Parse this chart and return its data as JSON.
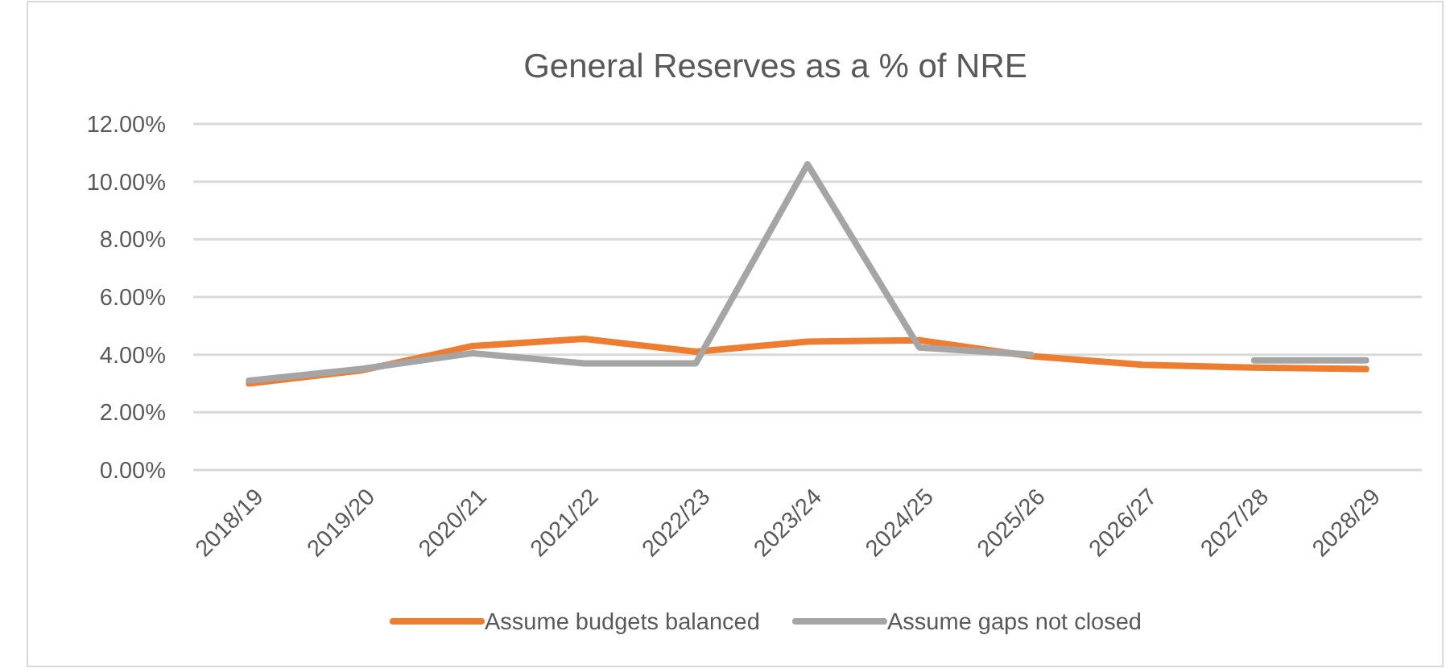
{
  "chart_data": {
    "type": "line",
    "title": "General Reserves as a % of NRE",
    "categories": [
      "2018/19",
      "2019/20",
      "2020/21",
      "2021/22",
      "2022/23",
      "2023/24",
      "2024/25",
      "2025/26",
      "2026/27",
      "2027/28",
      "2028/29"
    ],
    "series": [
      {
        "name": "Assume budgets balanced",
        "color": "#ed7d31",
        "values": [
          3.0,
          3.45,
          4.3,
          4.55,
          4.1,
          4.45,
          4.5,
          3.95,
          3.65,
          3.55,
          3.5
        ]
      },
      {
        "name": "Assume gaps not closed",
        "color": "#a5a5a5",
        "values": [
          3.1,
          3.5,
          4.05,
          3.7,
          3.7,
          10.6,
          4.25,
          4.0,
          null,
          3.8,
          3.8
        ]
      }
    ],
    "ylim": [
      0,
      12
    ],
    "yticks": [
      {
        "value": 0,
        "label": "0.00%"
      },
      {
        "value": 2,
        "label": "2.00%"
      },
      {
        "value": 4,
        "label": "4.00%"
      },
      {
        "value": 6,
        "label": "6.00%"
      },
      {
        "value": 8,
        "label": "8.00%"
      },
      {
        "value": 10,
        "label": "10.00%"
      },
      {
        "value": 12,
        "label": "12.00%"
      }
    ],
    "grid": "y",
    "legend": "bottom",
    "marker": "none",
    "line_style": "solid"
  }
}
